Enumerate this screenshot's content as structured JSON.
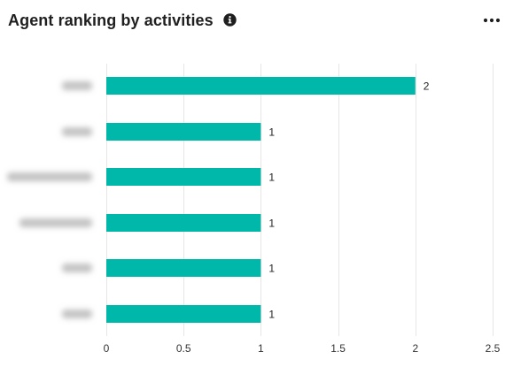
{
  "widget": {
    "title": "Agent ranking by activities",
    "info_icon": "info-icon",
    "more_icon": "more-horizontal-icon"
  },
  "colors": {
    "bar": "#00b8a9",
    "grid": "#e6e6e6",
    "blurred_label": "#c2c2c2"
  },
  "chart_data": {
    "type": "bar",
    "orientation": "horizontal",
    "title": "Agent ranking by activities",
    "categories_redacted": true,
    "values": [
      2,
      1,
      1,
      1,
      1,
      1
    ],
    "value_labels": [
      "2",
      "1",
      "1",
      "1",
      "1",
      "1"
    ],
    "xlim": [
      0,
      2.5
    ],
    "x_ticks": [
      0,
      0.5,
      1,
      1.5,
      2,
      2.5
    ],
    "x_tick_labels": [
      "0",
      "0.5",
      "1",
      "1.5",
      "2",
      "2.5"
    ],
    "grid": "vertical",
    "legend": "none"
  }
}
